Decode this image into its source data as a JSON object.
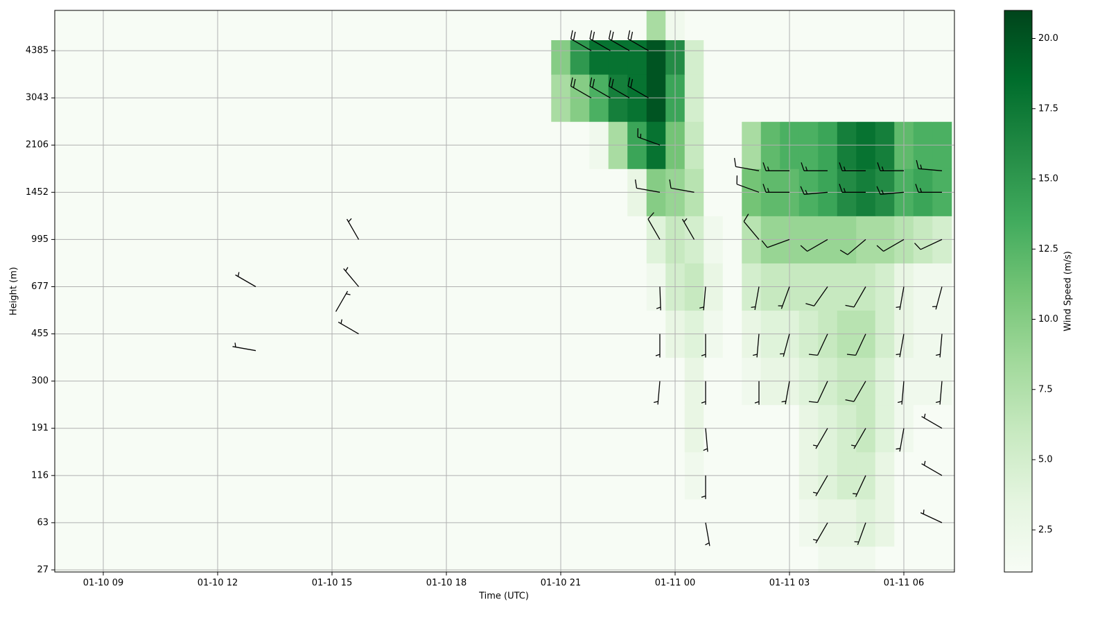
{
  "chart_data": {
    "type": "heatmap_barbs",
    "x_label": "Time (UTC)",
    "y_label": "Height (m)",
    "colorbar_label": "Wind Speed (m/s)",
    "xlim": [
      7.727,
      31.327
    ],
    "xticks": [
      {
        "value": 9,
        "label": "01-10 09"
      },
      {
        "value": 12,
        "label": "01-10 12"
      },
      {
        "value": 15,
        "label": "01-10 15"
      },
      {
        "value": 18,
        "label": "01-10 18"
      },
      {
        "value": 21,
        "label": "01-10 21"
      },
      {
        "value": 24,
        "label": "01-11 00"
      },
      {
        "value": 27,
        "label": "01-11 03"
      },
      {
        "value": 30,
        "label": "01-11 06"
      }
    ],
    "yscale": "piecewise",
    "ylim": [
      25.4,
      5530
    ],
    "yticks": [
      27,
      63,
      116,
      191,
      300,
      455,
      677,
      995,
      1452,
      2106,
      3043,
      4385
    ],
    "grid": true,
    "colormap": [
      "#f7fcf5",
      "#e5f5e0",
      "#c7e9c0",
      "#a1d99b",
      "#74c476",
      "#41ab5d",
      "#238b45",
      "#006d2c",
      "#00441b"
    ],
    "clim": [
      1,
      21
    ],
    "cticks": [
      2.5,
      {
        "value": 5,
        "label": "5.0"
      },
      7.5,
      {
        "value": 10,
        "label": "10.0"
      },
      12.5,
      {
        "value": 15,
        "label": "15.0"
      },
      17.5,
      {
        "value": 20,
        "label": "20.0"
      }
    ],
    "heatmap": {
      "x": [
        21,
        21.5,
        22,
        22.5,
        23,
        23.5,
        24,
        24.5,
        25,
        25.5,
        26,
        26.5,
        27,
        27.5,
        28,
        28.5,
        29,
        29.5,
        30,
        30.5,
        31
      ],
      "y": [
        27,
        63,
        116,
        191,
        300,
        455,
        677,
        995,
        1452,
        2106,
        3043,
        4385,
        5000
      ],
      "z": [
        [
          1,
          1,
          1,
          1,
          1,
          1,
          1,
          1,
          1,
          1,
          1,
          1,
          1,
          1,
          2,
          2,
          2,
          1,
          1,
          1,
          1
        ],
        [
          1,
          1,
          1,
          1,
          1,
          1,
          1,
          1,
          1,
          1,
          1,
          1,
          1,
          2,
          3,
          3,
          4,
          3,
          1,
          1,
          1
        ],
        [
          1,
          1,
          1,
          1,
          1,
          1,
          1,
          2,
          1,
          1,
          1,
          1,
          1,
          3,
          4,
          5,
          5,
          3,
          1,
          1,
          1
        ],
        [
          1,
          1,
          1,
          1,
          1,
          1,
          1,
          3,
          1,
          1,
          1,
          1,
          1,
          3,
          4,
          5,
          6,
          4,
          2,
          1,
          1
        ],
        [
          1,
          1,
          1,
          1,
          1,
          1,
          1,
          3,
          1,
          1,
          2,
          3,
          3,
          4,
          5,
          6,
          6,
          4,
          2,
          2,
          2
        ],
        [
          1,
          1,
          1,
          1,
          1,
          1,
          3,
          4,
          2,
          1,
          3,
          4,
          4,
          5,
          6,
          7,
          7,
          5,
          3,
          2,
          2
        ],
        [
          1,
          1,
          1,
          1,
          1,
          2,
          5,
          6,
          3,
          1,
          5,
          6,
          6,
          6,
          6,
          6,
          6,
          5,
          3,
          2,
          2
        ],
        [
          1,
          1,
          1,
          1,
          1,
          4,
          6,
          5,
          2,
          1,
          7,
          9,
          9,
          9,
          9,
          9,
          8,
          8,
          7,
          6,
          5
        ],
        [
          1,
          1,
          1,
          1,
          3,
          10,
          9,
          7,
          1,
          1,
          11,
          12,
          12,
          13,
          14,
          16,
          17,
          16,
          13,
          14,
          13
        ],
        [
          1,
          1,
          2,
          8,
          14,
          18,
          11,
          6,
          1,
          1,
          8,
          12,
          13,
          13,
          14,
          17,
          18,
          17,
          12,
          13,
          13
        ],
        [
          8,
          10,
          13,
          17,
          18,
          20,
          14,
          5,
          1,
          1,
          1,
          1,
          1,
          1,
          1,
          1,
          1,
          1,
          1,
          1,
          1
        ],
        [
          10,
          15,
          18,
          18,
          18,
          20,
          16,
          5,
          1,
          1,
          1,
          1,
          1,
          1,
          1,
          1,
          1,
          1,
          1,
          1,
          1
        ],
        [
          1,
          1,
          1,
          1,
          1,
          8,
          2,
          1,
          1,
          1,
          1,
          1,
          1,
          1,
          1,
          1,
          1,
          1,
          1,
          1,
          1
        ]
      ]
    },
    "barbs": {
      "x": [
        13,
        13,
        15.7,
        15.7,
        15.7,
        15.1,
        21.8,
        21.8,
        22.3,
        22.3,
        22.8,
        22.8,
        23.3,
        23.3,
        23.6,
        23.6,
        23.6,
        23.6,
        23.6,
        23.6,
        24.5,
        24.5,
        24.8,
        24.8,
        24.8,
        24.8,
        24.8,
        24.8,
        26.2,
        26.2,
        26.2,
        26.2,
        26.2,
        26.2,
        27,
        27,
        27,
        27,
        27,
        27,
        28,
        28,
        28,
        28,
        28,
        28,
        28,
        28,
        28,
        29,
        29,
        29,
        29,
        29,
        29,
        29,
        29,
        29,
        30,
        30,
        30,
        30,
        30,
        30,
        30,
        31,
        31,
        31,
        31,
        31,
        31,
        31,
        31,
        31
      ],
      "y": [
        677,
        400,
        995,
        677,
        455,
        560,
        4385,
        3043,
        4385,
        3043,
        4385,
        3043,
        4385,
        3043,
        2106,
        1452,
        995,
        677,
        455,
        300,
        1452,
        995,
        677,
        455,
        300,
        191,
        116,
        63,
        1750,
        1452,
        995,
        677,
        455,
        300,
        1750,
        1452,
        995,
        677,
        455,
        300,
        1750,
        1452,
        995,
        677,
        455,
        300,
        191,
        116,
        63,
        1750,
        1452,
        995,
        677,
        455,
        300,
        191,
        116,
        63,
        1750,
        1452,
        995,
        677,
        455,
        300,
        191,
        1750,
        1452,
        995,
        677,
        455,
        300,
        191,
        116,
        63
      ],
      "speed": [
        7,
        5,
        5,
        5,
        4,
        3,
        20,
        20,
        20,
        20,
        20,
        20,
        20,
        20,
        17,
        12,
        8,
        6,
        5,
        5,
        8,
        6,
        7,
        6,
        6,
        6,
        5,
        5,
        12,
        12,
        8,
        6,
        6,
        6,
        13,
        13,
        9,
        7,
        7,
        6,
        15,
        15,
        10,
        8,
        8,
        8,
        7,
        7,
        6,
        17,
        17,
        10,
        8,
        9,
        9,
        7,
        7,
        6,
        13,
        14,
        8,
        6,
        6,
        5,
        5,
        13,
        13,
        8,
        6,
        5,
        5,
        6,
        6,
        5
      ],
      "direction": [
        300,
        280,
        330,
        320,
        300,
        30,
        300,
        300,
        300,
        300,
        300,
        300,
        300,
        300,
        290,
        280,
        330,
        178,
        180,
        185,
        280,
        330,
        185,
        180,
        180,
        175,
        180,
        170,
        280,
        290,
        320,
        190,
        185,
        180,
        270,
        270,
        250,
        200,
        195,
        190,
        270,
        265,
        240,
        215,
        205,
        205,
        210,
        210,
        210,
        270,
        270,
        230,
        210,
        205,
        210,
        210,
        205,
        200,
        270,
        265,
        240,
        190,
        190,
        185,
        190,
        275,
        270,
        245,
        195,
        185,
        185,
        300,
        300,
        295
      ]
    }
  }
}
